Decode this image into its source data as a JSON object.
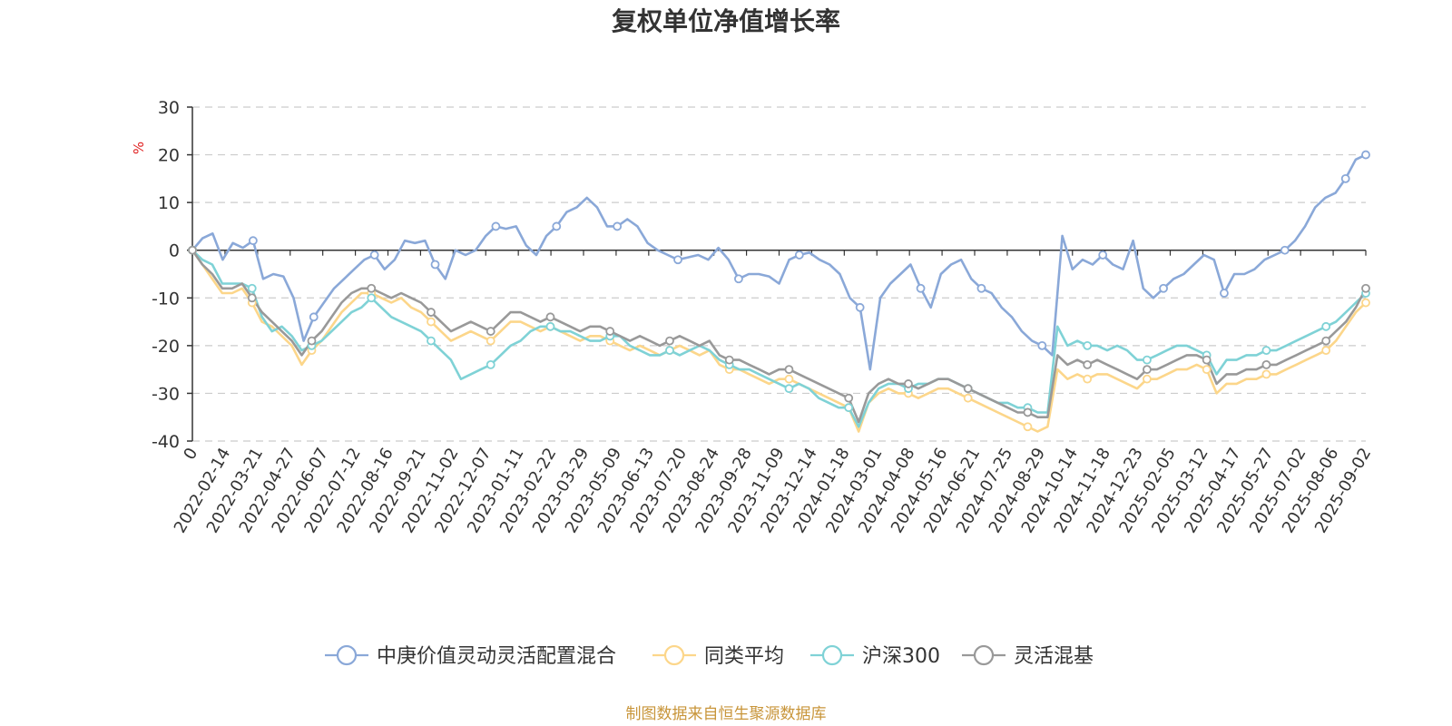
{
  "chart_data": {
    "type": "line",
    "title": "复权单位净值增长率",
    "ylabel": "%",
    "ylim": [
      -40,
      30
    ],
    "yticks": [
      30,
      20,
      10,
      0,
      -10,
      -20,
      -30,
      -40
    ],
    "grid": true,
    "legend_position": "bottom",
    "x_tick_labels": [
      "0",
      "2022-02-14",
      "2022-03-21",
      "2022-04-27",
      "2022-06-07",
      "2022-07-12",
      "2022-08-16",
      "2022-09-21",
      "2022-11-02",
      "2022-12-07",
      "2023-01-11",
      "2023-02-22",
      "2023-03-29",
      "2023-05-09",
      "2023-06-13",
      "2023-07-20",
      "2023-08-24",
      "2023-09-28",
      "2023-11-09",
      "2023-12-14",
      "2024-01-18",
      "2024-03-01",
      "2024-04-08",
      "2024-05-16",
      "2024-06-21",
      "2024-07-25",
      "2024-08-29",
      "2024-10-14",
      "2024-11-18",
      "2024-12-23",
      "2025-02-05",
      "2025-03-12",
      "2025-04-17",
      "2025-05-27",
      "2025-07-02",
      "2025-08-06",
      "2025-09-02"
    ],
    "series": [
      {
        "name": "中庚价值灵动灵活配置混合",
        "color": "#8aa8d8",
        "values": [
          0,
          2.5,
          3.5,
          -2,
          1.5,
          0.5,
          2,
          -6,
          -5,
          -5.5,
          -10,
          -19,
          -14,
          -11,
          -8,
          -6,
          -4,
          -2,
          -1,
          -4,
          -2,
          2,
          1.5,
          2,
          -3,
          -6,
          0,
          -1,
          0,
          3,
          5,
          4.5,
          5,
          1,
          -1,
          3,
          5,
          8,
          9,
          11,
          9,
          5,
          5,
          6.5,
          5,
          1.5,
          0,
          -1,
          -2,
          -1.5,
          -1,
          -2,
          0.5,
          -2,
          -6,
          -5,
          -5,
          -5.5,
          -7,
          -2,
          -1,
          -0.5,
          -2,
          -3,
          -5,
          -10,
          -12,
          -25,
          -10,
          -7,
          -5,
          -3,
          -8,
          -12,
          -5,
          -3,
          -2,
          -6,
          -8,
          -9,
          -12,
          -14,
          -17,
          -19,
          -20,
          -22,
          3,
          -4,
          -2,
          -3,
          -1,
          -3,
          -4,
          2,
          -8,
          -10,
          -8,
          -6,
          -5,
          -3,
          -1,
          -2,
          -9,
          -5,
          -5,
          -4,
          -2,
          -1,
          0,
          2,
          5,
          9,
          11,
          12,
          15,
          19,
          20
        ]
      },
      {
        "name": "同类平均",
        "color": "#fcd68a",
        "values": [
          0,
          -3,
          -6,
          -9,
          -9,
          -8,
          -11,
          -15,
          -16,
          -18,
          -20,
          -24,
          -21,
          -19,
          -16,
          -13,
          -11,
          -9,
          -9,
          -10,
          -11,
          -10,
          -12,
          -13,
          -15,
          -17,
          -19,
          -18,
          -17,
          -18,
          -19,
          -17,
          -15,
          -15,
          -16,
          -17,
          -16,
          -17,
          -18,
          -19,
          -18,
          -18,
          -19,
          -20,
          -21,
          -20,
          -21,
          -22,
          -21,
          -20,
          -21,
          -22,
          -21,
          -24,
          -25,
          -25,
          -26,
          -27,
          -28,
          -27,
          -27,
          -28,
          -29,
          -30,
          -31,
          -32,
          -33,
          -38,
          -32,
          -30,
          -29,
          -30,
          -30,
          -31,
          -30,
          -29,
          -29,
          -30,
          -31,
          -32,
          -33,
          -34,
          -35,
          -36,
          -37,
          -38,
          -37,
          -25,
          -27,
          -26,
          -27,
          -26,
          -26,
          -27,
          -28,
          -29,
          -27,
          -27,
          -26,
          -25,
          -25,
          -24,
          -25,
          -30,
          -28,
          -28,
          -27,
          -27,
          -26,
          -26,
          -25,
          -24,
          -23,
          -22,
          -21,
          -19,
          -16,
          -13,
          -11
        ]
      },
      {
        "name": "沪深300",
        "color": "#7fd2d6",
        "values": [
          0,
          -2,
          -3,
          -7,
          -7,
          -7,
          -8,
          -14,
          -17,
          -16,
          -18,
          -21,
          -20,
          -19,
          -17,
          -15,
          -13,
          -12,
          -10,
          -12,
          -14,
          -15,
          -16,
          -17,
          -19,
          -21,
          -23,
          -27,
          -26,
          -25,
          -24,
          -22,
          -20,
          -19,
          -17,
          -16,
          -16,
          -17,
          -17,
          -18,
          -19,
          -19,
          -18,
          -18,
          -20,
          -21,
          -22,
          -22,
          -21,
          -22,
          -21,
          -20,
          -21,
          -23,
          -24,
          -25,
          -25,
          -26,
          -27,
          -28,
          -29,
          -28,
          -29,
          -31,
          -32,
          -33,
          -33,
          -37,
          -32,
          -29,
          -28,
          -28,
          -29,
          -28,
          -28,
          -27,
          -27,
          -28,
          -29,
          -30,
          -31,
          -32,
          -32,
          -33,
          -33,
          -34,
          -34,
          -16,
          -20,
          -19,
          -20,
          -20,
          -21,
          -20,
          -21,
          -23,
          -23,
          -22,
          -21,
          -20,
          -20,
          -21,
          -22,
          -26,
          -23,
          -23,
          -22,
          -22,
          -21,
          -21,
          -20,
          -19,
          -18,
          -17,
          -16,
          -15,
          -13,
          -11,
          -9
        ]
      },
      {
        "name": "灵活混基",
        "color": "#999999",
        "values": [
          0,
          -3,
          -5,
          -8,
          -8,
          -7,
          -10,
          -13,
          -15,
          -17,
          -19,
          -22,
          -19,
          -17,
          -14,
          -11,
          -9,
          -8,
          -8,
          -9,
          -10,
          -9,
          -10,
          -11,
          -13,
          -15,
          -17,
          -16,
          -15,
          -16,
          -17,
          -15,
          -13,
          -13,
          -14,
          -15,
          -14,
          -15,
          -16,
          -17,
          -16,
          -16,
          -17,
          -18,
          -19,
          -18,
          -19,
          -20,
          -19,
          -18,
          -19,
          -20,
          -19,
          -22,
          -23,
          -23,
          -24,
          -25,
          -26,
          -25,
          -25,
          -26,
          -27,
          -28,
          -29,
          -30,
          -31,
          -36,
          -30,
          -28,
          -27,
          -28,
          -28,
          -29,
          -28,
          -27,
          -27,
          -28,
          -29,
          -30,
          -31,
          -32,
          -33,
          -34,
          -34,
          -35,
          -35,
          -22,
          -24,
          -23,
          -24,
          -23,
          -24,
          -25,
          -26,
          -27,
          -25,
          -25,
          -24,
          -23,
          -22,
          -22,
          -23,
          -28,
          -26,
          -26,
          -25,
          -25,
          -24,
          -24,
          -23,
          -22,
          -21,
          -20,
          -19,
          -17,
          -15,
          -12,
          -8
        ]
      }
    ]
  },
  "source_note": "制图数据来自恒生聚源数据库"
}
